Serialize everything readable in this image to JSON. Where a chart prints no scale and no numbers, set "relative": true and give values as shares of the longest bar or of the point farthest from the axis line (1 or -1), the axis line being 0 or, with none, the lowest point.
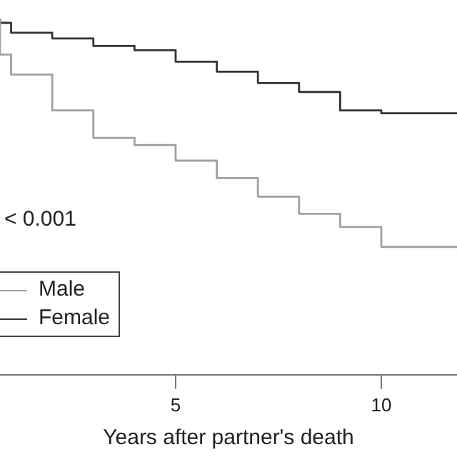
{
  "chart_data": {
    "type": "step",
    "relative": true,
    "xlabel": "Years after partner's death",
    "x": [
      0.73,
      1,
      2,
      3,
      4,
      5,
      6,
      7,
      8,
      9,
      10,
      11,
      11.84
    ],
    "xlim": [
      0.73,
      11.84
    ],
    "xticks": [
      5,
      10
    ],
    "series": [
      {
        "name": "Male",
        "color": "#a0a0a0",
        "values": [
          1,
          0.899,
          0.843,
          0.742,
          0.665,
          0.645,
          0.601,
          0.552,
          0.5,
          0.452,
          0.415,
          0.359,
          0.359
        ]
      },
      {
        "name": "Female",
        "color": "#333333",
        "values": [
          1,
          0.988,
          0.96,
          0.944,
          0.923,
          0.911,
          0.879,
          0.851,
          0.819,
          0.794,
          0.742,
          0.734,
          0.734
        ]
      }
    ],
    "annotations": [
      "< 0.001"
    ],
    "legend": "bottom left",
    "grid": false,
    "marker": "none",
    "line_style": "solid"
  }
}
